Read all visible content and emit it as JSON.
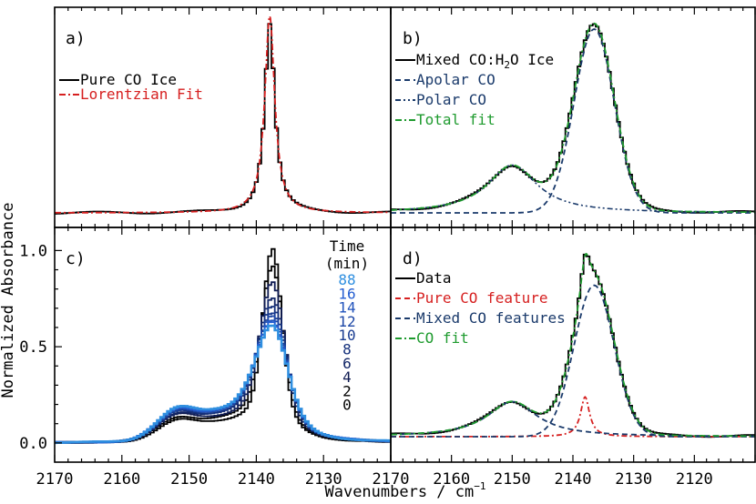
{
  "xlabel": "Wavenumbers / cm",
  "xlabel_sup": "−1",
  "ylabel": "Normalized Absorbance",
  "colors": {
    "black": "#000000",
    "red": "#d62020",
    "navy": "#1a3a6b",
    "green": "#1f9b2f",
    "light_blue": "#2f8fe0"
  },
  "panels": {
    "a": {
      "label": "a)",
      "legend": [
        "Pure CO Ice",
        "Lorentzian Fit"
      ]
    },
    "b": {
      "label": "b)",
      "legend_first_pre": "Mixed CO:H",
      "legend_first_sub": "2",
      "legend_first_post": "O Ice",
      "legend": [
        "Apolar CO",
        "Polar CO",
        "Total fit"
      ]
    },
    "c": {
      "label": "c)",
      "time_title": "Time",
      "time_unit": "(min)",
      "times": [
        "88",
        "16",
        "14",
        "12",
        "10",
        "8",
        "6",
        "4",
        "2",
        "0"
      ]
    },
    "d": {
      "label": "d)",
      "legend": [
        "Data",
        "Pure CO feature",
        "Mixed CO features",
        "CO fit"
      ]
    }
  },
  "chart_data": [
    {
      "panel": "a",
      "type": "line",
      "x_range": [
        2170,
        2120
      ],
      "y_ticks": "none",
      "series": [
        {
          "name": "Pure CO Ice",
          "style": "histogram",
          "peak_x": 2138.0,
          "peak_y": 1.0,
          "hwhm": 0.9
        },
        {
          "name": "Lorentzian Fit",
          "style": "dash-dot",
          "peak_x": 2138.0,
          "peak_y": 1.04,
          "hwhm": 0.9
        }
      ]
    },
    {
      "panel": "b",
      "type": "line",
      "x_range": [
        2170,
        2110
      ],
      "x_ticks": [
        2170,
        2160,
        2150,
        2140,
        2130,
        2120
      ],
      "y_ticks": "none",
      "series": [
        {
          "name": "Mixed CO:H2O Ice",
          "style": "histogram"
        },
        {
          "name": "Apolar CO",
          "style": "dashed",
          "center": 2136.5,
          "amplitude": 1.0,
          "sigma": 3.3
        },
        {
          "name": "Polar CO",
          "style": "dash-dot-dot",
          "center": 2150.0,
          "amplitude": 0.26,
          "hwhm": 5.0
        },
        {
          "name": "Total fit",
          "style": "dash-dot"
        }
      ]
    },
    {
      "panel": "c",
      "type": "line",
      "x_range": [
        2170,
        2120
      ],
      "ylim": [
        -0.1,
        1.12
      ],
      "y_ticks": [
        0.0,
        0.5,
        1.0
      ],
      "times_min": [
        0,
        2,
        4,
        6,
        8,
        10,
        12,
        14,
        16,
        88
      ],
      "peak_2138": [
        1.0,
        0.91,
        0.82,
        0.74,
        0.69,
        0.66,
        0.64,
        0.62,
        0.61,
        0.59
      ],
      "band_2150": [
        0.11,
        0.125,
        0.135,
        0.145,
        0.15,
        0.155,
        0.16,
        0.163,
        0.165,
        0.17
      ]
    },
    {
      "panel": "d",
      "type": "line",
      "x_range": [
        2170,
        2110
      ],
      "x_ticks": [
        2170,
        2160,
        2150,
        2140,
        2130,
        2120
      ],
      "y_ticks": "none",
      "series": [
        {
          "name": "Data",
          "style": "histogram"
        },
        {
          "name": "Pure CO feature",
          "style": "dash-dot",
          "center": 2138.0,
          "amplitude": 0.21,
          "hwhm": 0.9
        },
        {
          "name": "Mixed CO features",
          "style": "dashed",
          "center_1": 2136.5,
          "amplitude_1": 0.8,
          "sigma_1": 3.3,
          "center_2": 2150.0,
          "amplitude_2": 0.185,
          "hwhm_2": 5.0
        },
        {
          "name": "CO fit",
          "style": "dash-dot"
        }
      ]
    }
  ]
}
